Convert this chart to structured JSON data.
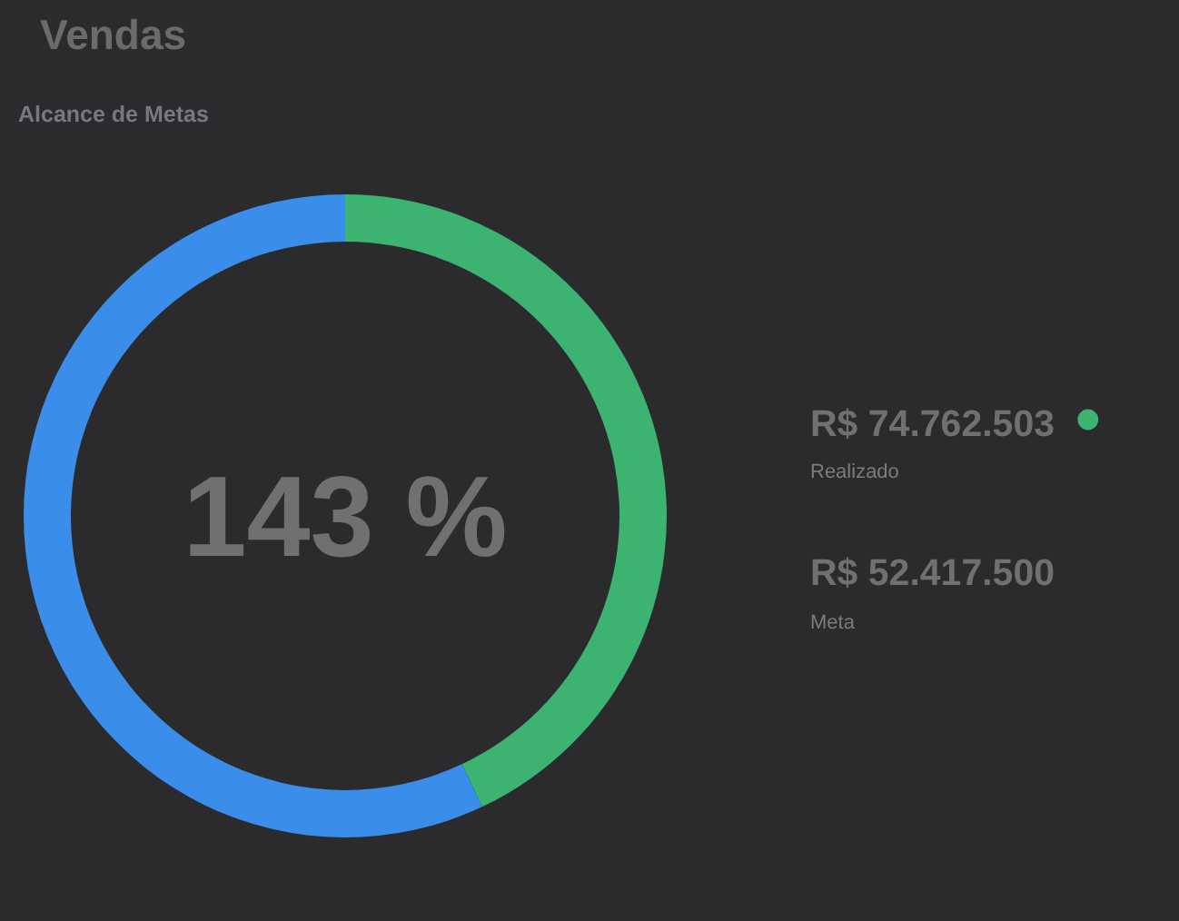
{
  "chart_data": {
    "type": "donut",
    "title": "Vendas",
    "subtitle": "Alcance de Metas",
    "categories": [
      "Realizado",
      null
    ],
    "values": [
      43,
      57
    ],
    "colors": [
      "#3cb371",
      "#3a8eea"
    ],
    "annotations": [
      "143 %",
      "R$ 74.762.503",
      "R$ 52.417.500",
      "Meta"
    ]
  }
}
